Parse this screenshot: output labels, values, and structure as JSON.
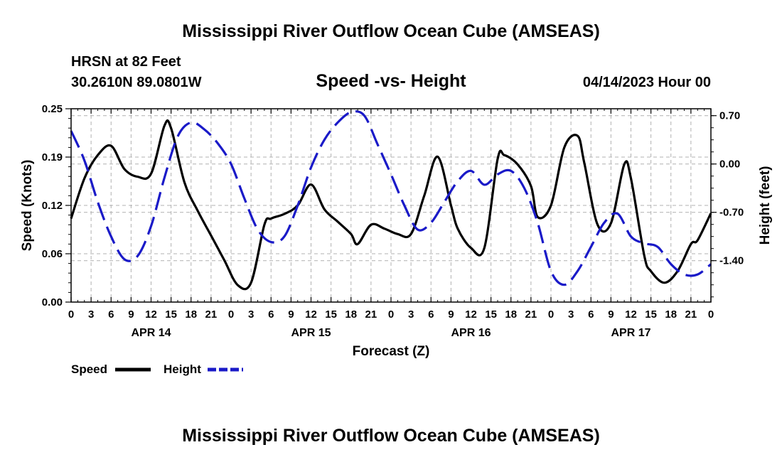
{
  "header": {
    "title": "Mississippi River Outflow Ocean Cube (AMSEAS)",
    "station": "HRSN at 82 Feet",
    "coords": "30.2610N  89.0801W",
    "subtitle": "Speed -vs- Height",
    "datetime": "04/14/2023 Hour 00"
  },
  "footer": {
    "title": "Mississippi River Outflow Ocean Cube (AMSEAS)"
  },
  "chart_data": {
    "type": "line",
    "title": "Speed -vs- Height",
    "xlabel": "Forecast (Z)",
    "ylabel": "Speed (Knots)",
    "y2label": "Height (feet)",
    "xlim": [
      0,
      96
    ],
    "ylim": [
      0,
      0.25
    ],
    "y2lim": [
      -2.0,
      0.8
    ],
    "grid": true,
    "x_tick_labels": [
      "0",
      "3",
      "6",
      "9",
      "12",
      "15",
      "18",
      "21",
      "0",
      "3",
      "6",
      "9",
      "12",
      "15",
      "18",
      "21",
      "0",
      "3",
      "6",
      "9",
      "12",
      "15",
      "18",
      "21",
      "0",
      "3",
      "6",
      "9",
      "12",
      "15",
      "18",
      "21",
      "0"
    ],
    "day_labels": [
      {
        "label": "APR 14",
        "hour": 12
      },
      {
        "label": "APR 15",
        "hour": 36
      },
      {
        "label": "APR 16",
        "hour": 60
      },
      {
        "label": "APR 17",
        "hour": 84
      }
    ],
    "y_ticks": [
      {
        "value": 0.0,
        "label": "0.00"
      },
      {
        "value": 0.0625,
        "label": "0.06"
      },
      {
        "value": 0.125,
        "label": "0.12"
      },
      {
        "value": 0.1875,
        "label": "0.19"
      },
      {
        "value": 0.25,
        "label": "0.25"
      }
    ],
    "y2_ticks": [
      {
        "value": 0.7,
        "label": "0.70"
      },
      {
        "value": 0.0,
        "label": "0.00"
      },
      {
        "value": -0.7,
        "label": "-0.70"
      },
      {
        "value": -1.4,
        "label": "-1.40"
      }
    ],
    "legend": {
      "placement": "bottom-left",
      "speed_label": "Speed",
      "height_label": "Height"
    },
    "series": [
      {
        "name": "Speed",
        "axis": "left",
        "color": "#000000",
        "style": "solid",
        "x": [
          0,
          2,
          4,
          6,
          8,
          10,
          12,
          14,
          15,
          17,
          19,
          21,
          23,
          25,
          27,
          29,
          30,
          32,
          34,
          36,
          38,
          40,
          42,
          43,
          45,
          47,
          49,
          51,
          53,
          55,
          57,
          58,
          60,
          62,
          64,
          65,
          67,
          69,
          70,
          72,
          74,
          76,
          77,
          79,
          81,
          83,
          84,
          86,
          87,
          89,
          91,
          93,
          94,
          96
        ],
        "y": [
          0.108,
          0.16,
          0.19,
          0.202,
          0.172,
          0.162,
          0.166,
          0.228,
          0.225,
          0.155,
          0.118,
          0.086,
          0.054,
          0.022,
          0.025,
          0.1,
          0.108,
          0.114,
          0.125,
          0.152,
          0.12,
          0.104,
          0.088,
          0.075,
          0.1,
          0.095,
          0.088,
          0.088,
          0.138,
          0.188,
          0.125,
          0.095,
          0.07,
          0.07,
          0.185,
          0.19,
          0.178,
          0.15,
          0.11,
          0.125,
          0.2,
          0.215,
          0.18,
          0.1,
          0.102,
          0.178,
          0.16,
          0.06,
          0.04,
          0.025,
          0.04,
          0.075,
          0.08,
          0.115
        ]
      },
      {
        "name": "Height",
        "axis": "right",
        "color": "#1a1ac8",
        "style": "dashed",
        "x": [
          0,
          2,
          4,
          6,
          8,
          10,
          12,
          14,
          16,
          18,
          20,
          22,
          24,
          26,
          28,
          30,
          32,
          34,
          36,
          38,
          40,
          42,
          44,
          46,
          48,
          50,
          52,
          54,
          56,
          58,
          60,
          62,
          64,
          66,
          68,
          70,
          72,
          74,
          76,
          78,
          80,
          82,
          84,
          86,
          88,
          90,
          92,
          94,
          96
        ],
        "y": [
          0.48,
          0.05,
          -0.55,
          -1.05,
          -1.38,
          -1.33,
          -0.9,
          -0.2,
          0.4,
          0.6,
          0.5,
          0.3,
          0.0,
          -0.5,
          -0.95,
          -1.13,
          -1.05,
          -0.6,
          -0.05,
          0.35,
          0.6,
          0.75,
          0.7,
          0.28,
          -0.15,
          -0.6,
          -0.95,
          -0.85,
          -0.55,
          -0.25,
          -0.1,
          -0.3,
          -0.15,
          -0.1,
          -0.35,
          -0.85,
          -1.55,
          -1.75,
          -1.55,
          -1.2,
          -0.85,
          -0.72,
          -1.05,
          -1.15,
          -1.2,
          -1.45,
          -1.6,
          -1.6,
          -1.45
        ]
      }
    ]
  }
}
